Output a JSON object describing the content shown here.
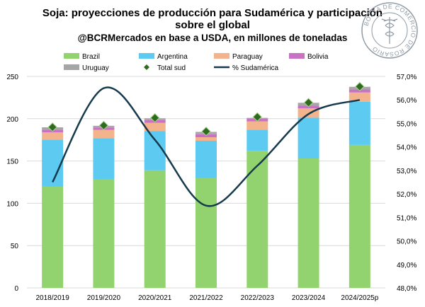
{
  "title_line1": "Soja: proyecciones de producción para Sudamérica y participación",
  "title_line2": "sobre el global",
  "subtitle": "@BCRMercados en base a USDA, en millones de toneladas",
  "seal_text": "BOLSA DE COMERCIO DE ROSARIO",
  "colors": {
    "brazil": "#92d36f",
    "argentina": "#5ccaf1",
    "paraguay": "#f3b38c",
    "bolivia": "#c971c3",
    "uruguay": "#a6a6a6",
    "total": "#2e6b1f",
    "share": "#163a4c"
  },
  "chart_data": {
    "type": "bar",
    "stacked": true,
    "categories": [
      "2018/2019",
      "2019/2020",
      "2020/2021",
      "2021/2022",
      "2022/2023",
      "2023/2024",
      "2024/2025p"
    ],
    "series": [
      {
        "name": "Brazil",
        "key": "brazil",
        "values": [
          120,
          128,
          139,
          130,
          162,
          153,
          169
        ]
      },
      {
        "name": "Argentina",
        "key": "argentina",
        "values": [
          55.3,
          48.8,
          46.2,
          43.9,
          25.0,
          48.2,
          51.0
        ]
      },
      {
        "name": "Paraguay",
        "key": "paraguay",
        "values": [
          8.5,
          10.0,
          9.9,
          4.2,
          9.8,
          11.0,
          11.0
        ]
      },
      {
        "name": "Bolivia",
        "key": "bolivia",
        "values": [
          3.0,
          2.8,
          3.3,
          3.5,
          3.0,
          3.4,
          3.5
        ]
      },
      {
        "name": "Uruguay",
        "key": "uruguay",
        "values": [
          3.0,
          2.0,
          2.1,
          2.8,
          1.2,
          3.2,
          3.2
        ]
      }
    ],
    "total_sud": {
      "name": "Total sud",
      "values": [
        190,
        192,
        201,
        185,
        202,
        219,
        238
      ]
    },
    "share": {
      "name": "% Sudamérica",
      "values": [
        52.5,
        56.5,
        54.3,
        51.5,
        53.2,
        55.4,
        56.0
      ]
    },
    "y_left": {
      "min": 0,
      "max": 250,
      "ticks": [
        0,
        50,
        100,
        150,
        200,
        250
      ]
    },
    "y_right": {
      "min": 48,
      "max": 57,
      "ticks": [
        "48,0%",
        "49,0%",
        "50,0%",
        "51,0%",
        "52,0%",
        "53,0%",
        "54,0%",
        "55,0%",
        "56,0%",
        "57,0%"
      ]
    },
    "legend": [
      "Brazil",
      "Argentina",
      "Paraguay",
      "Bolivia",
      "Uruguay",
      "Total sud",
      "% Sudamérica"
    ],
    "legend_position": "top",
    "grid": true
  }
}
